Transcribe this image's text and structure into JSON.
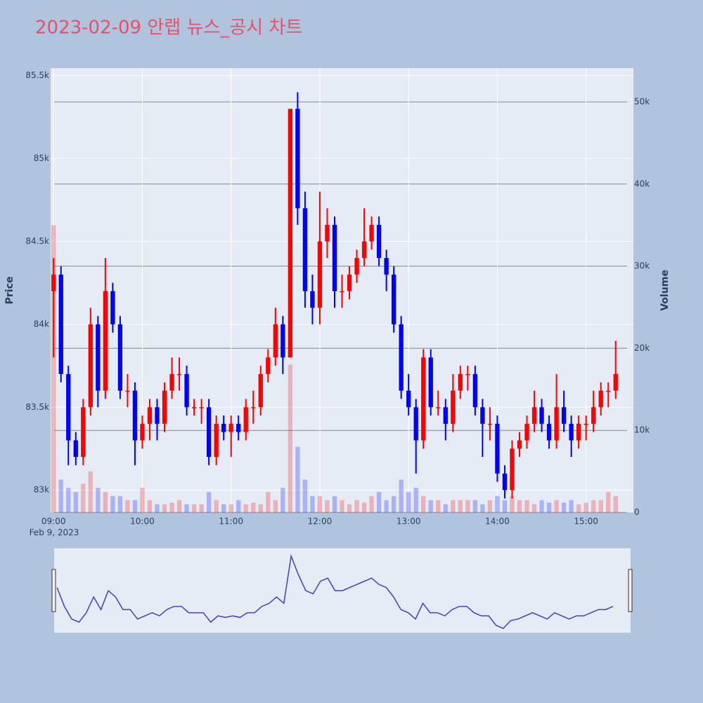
{
  "chart_data": {
    "type": "candlestick",
    "title": "2023-02-09 안랩 뉴스_공시 차트",
    "y_label": "Price",
    "y2_label": "Volume",
    "x_date_label": "Feb 9, 2023",
    "increasing_color": "#ff0000",
    "decreasing_color": "#0000ff",
    "x": [
      "09:00",
      "09:05",
      "09:10",
      "09:15",
      "09:20",
      "09:25",
      "09:30",
      "09:35",
      "09:40",
      "09:45",
      "09:50",
      "09:55",
      "10:00",
      "10:05",
      "10:10",
      "10:15",
      "10:20",
      "10:25",
      "10:30",
      "10:35",
      "10:40",
      "10:45",
      "10:50",
      "10:55",
      "11:00",
      "11:05",
      "11:10",
      "11:15",
      "11:20",
      "11:25",
      "11:30",
      "11:35",
      "11:40",
      "11:45",
      "11:50",
      "11:55",
      "12:00",
      "12:05",
      "12:10",
      "12:15",
      "12:20",
      "12:25",
      "12:30",
      "12:35",
      "12:40",
      "12:45",
      "12:50",
      "12:55",
      "13:00",
      "13:05",
      "13:10",
      "13:15",
      "13:20",
      "13:25",
      "13:30",
      "13:35",
      "13:40",
      "13:45",
      "13:50",
      "13:55",
      "14:00",
      "14:05",
      "14:10",
      "14:15",
      "14:20",
      "14:25",
      "14:30",
      "14:35",
      "14:40",
      "14:45",
      "14:50",
      "14:55",
      "15:00",
      "15:05",
      "15:10",
      "15:15",
      "15:20"
    ],
    "open": [
      84200,
      84300,
      83700,
      83300,
      83200,
      83500,
      84000,
      83600,
      84200,
      84000,
      83600,
      83600,
      83300,
      83400,
      83500,
      83400,
      83600,
      83700,
      83700,
      83500,
      83500,
      83500,
      83200,
      83400,
      83350,
      83400,
      83350,
      83500,
      83500,
      83700,
      83800,
      84000,
      83800,
      85300,
      84700,
      84200,
      84100,
      84500,
      84600,
      84200,
      84200,
      84300,
      84400,
      84500,
      84600,
      84400,
      84300,
      84000,
      83600,
      83500,
      83300,
      83800,
      83500,
      83500,
      83400,
      83600,
      83700,
      83700,
      83500,
      83400,
      83400,
      83100,
      83000,
      83250,
      83300,
      83400,
      83500,
      83400,
      83300,
      83500,
      83400,
      83300,
      83400,
      83400,
      83500,
      83600,
      83600
    ],
    "high": [
      84400,
      84350,
      83750,
      83350,
      83550,
      84100,
      84050,
      84400,
      84250,
      84050,
      83700,
      83650,
      83450,
      83550,
      83550,
      83650,
      83800,
      83800,
      83750,
      83550,
      83550,
      83550,
      83450,
      83450,
      83450,
      83450,
      83550,
      83600,
      83750,
      83850,
      84100,
      84050,
      85300,
      85400,
      84800,
      84300,
      84800,
      84700,
      84650,
      84300,
      84350,
      84450,
      84700,
      84650,
      84650,
      84450,
      84350,
      84050,
      83700,
      83550,
      83850,
      83850,
      83600,
      83550,
      83700,
      83750,
      83750,
      83750,
      83550,
      83500,
      83450,
      83150,
      83300,
      83350,
      83450,
      83600,
      83550,
      83450,
      83700,
      83600,
      83450,
      83450,
      83450,
      83600,
      83650,
      83650,
      83900
    ],
    "low": [
      83800,
      83650,
      83150,
      83150,
      83150,
      83450,
      83500,
      83550,
      83950,
      83550,
      83500,
      83150,
      83250,
      83300,
      83300,
      83350,
      83550,
      83600,
      83450,
      83450,
      83400,
      83150,
      83150,
      83300,
      83200,
      83300,
      83300,
      83400,
      83450,
      83650,
      83750,
      83700,
      83800,
      84600,
      84100,
      84000,
      84000,
      84400,
      84100,
      84100,
      84150,
      84250,
      84350,
      84450,
      84350,
      84200,
      83950,
      83550,
      83450,
      83100,
      83250,
      83450,
      83450,
      83300,
      83350,
      83550,
      83600,
      83450,
      83200,
      83300,
      83050,
      82950,
      82950,
      83200,
      83250,
      83350,
      83350,
      83250,
      83250,
      83350,
      83200,
      83250,
      83300,
      83350,
      83450,
      83500,
      83550
    ],
    "close": [
      84300,
      83700,
      83300,
      83200,
      83500,
      84000,
      83600,
      84200,
      84000,
      83600,
      83600,
      83300,
      83400,
      83500,
      83400,
      83600,
      83700,
      83700,
      83500,
      83500,
      83500,
      83200,
      83400,
      83350,
      83400,
      83350,
      83500,
      83500,
      83700,
      83800,
      84000,
      83800,
      85300,
      84700,
      84200,
      84100,
      84500,
      84600,
      84200,
      84200,
      84300,
      84400,
      84500,
      84600,
      84400,
      84300,
      84000,
      83600,
      83500,
      83300,
      83800,
      83500,
      83500,
      83400,
      83600,
      83700,
      83700,
      83500,
      83400,
      83400,
      83100,
      83000,
      83250,
      83300,
      83400,
      83500,
      83400,
      83300,
      83500,
      83400,
      83300,
      83400,
      83400,
      83500,
      83600,
      83600,
      83700
    ],
    "volume": [
      35000,
      4000,
      3000,
      2500,
      3500,
      5000,
      3000,
      2500,
      2000,
      2000,
      1500,
      1500,
      3000,
      1500,
      1000,
      1000,
      1200,
      1500,
      1000,
      1000,
      1000,
      2500,
      1500,
      1000,
      1000,
      1500,
      1000,
      1200,
      1000,
      2500,
      1500,
      3000,
      18000,
      8000,
      4000,
      2000,
      2000,
      1500,
      2000,
      1500,
      1000,
      1500,
      1200,
      2000,
      2500,
      1500,
      2000,
      4000,
      2500,
      3000,
      2000,
      1500,
      1500,
      1000,
      1500,
      1500,
      1500,
      1500,
      1000,
      1500,
      2000,
      1500,
      2000,
      1500,
      1500,
      1000,
      1500,
      1200,
      1500,
      1200,
      1500,
      1000,
      1200,
      1500,
      1500,
      2500,
      2000
    ],
    "xlim": [
      "08:58",
      "15:32"
    ],
    "xticks": [
      "09:00",
      "10:00",
      "11:00",
      "12:00",
      "13:00",
      "14:00",
      "15:00"
    ],
    "ylim": [
      82865,
      85545
    ],
    "yticks": [
      {
        "value": 83000,
        "label": "83k"
      },
      {
        "value": 83500,
        "label": "83.5k"
      },
      {
        "value": 84000,
        "label": "84k"
      },
      {
        "value": 84500,
        "label": "84.5k"
      },
      {
        "value": 85000,
        "label": "85k"
      },
      {
        "value": 85500,
        "label": "85.5k"
      }
    ],
    "y2lim": [
      0,
      54110
    ],
    "y2ticks": [
      0,
      {
        "value": 10000,
        "label": "10k"
      },
      {
        "value": 20000,
        "label": "20k"
      },
      {
        "value": 30000,
        "label": "30k"
      },
      {
        "value": 40000,
        "label": "40k"
      },
      {
        "value": 50000,
        "label": "50k"
      }
    ],
    "grid": true
  }
}
